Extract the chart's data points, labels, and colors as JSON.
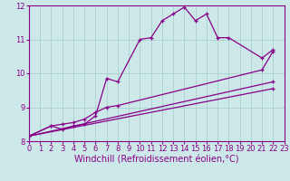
{
  "xlabel": "Windchill (Refroidissement éolien,°C)",
  "background_color": "#cce8e8",
  "line_color": "#880088",
  "xlim": [
    0,
    23
  ],
  "ylim": [
    8,
    12
  ],
  "yticks": [
    8,
    9,
    10,
    11,
    12
  ],
  "xticks": [
    0,
    1,
    2,
    3,
    4,
    5,
    6,
    7,
    8,
    9,
    10,
    11,
    12,
    13,
    14,
    15,
    16,
    17,
    18,
    19,
    20,
    21,
    22,
    23
  ],
  "series": [
    {
      "x": [
        0,
        2,
        3,
        4,
        5,
        6,
        7,
        8,
        10,
        11,
        12,
        13,
        14,
        15,
        16,
        17,
        18,
        21,
        22
      ],
      "y": [
        8.15,
        8.45,
        8.35,
        8.45,
        8.5,
        8.75,
        9.85,
        9.75,
        11.0,
        11.05,
        11.55,
        11.75,
        11.95,
        11.55,
        11.75,
        11.05,
        11.05,
        10.45,
        10.7
      ]
    },
    {
      "x": [
        0,
        22
      ],
      "y": [
        8.15,
        9.55
      ]
    },
    {
      "x": [
        0,
        22
      ],
      "y": [
        8.15,
        9.75
      ]
    },
    {
      "x": [
        0,
        2,
        3,
        4,
        5,
        6,
        7,
        8,
        21,
        22
      ],
      "y": [
        8.15,
        8.45,
        8.5,
        8.55,
        8.65,
        8.85,
        9.0,
        9.05,
        10.1,
        10.65
      ]
    }
  ],
  "grid_color": "#aad0d0",
  "tick_fontsize": 6,
  "xlabel_fontsize": 7
}
